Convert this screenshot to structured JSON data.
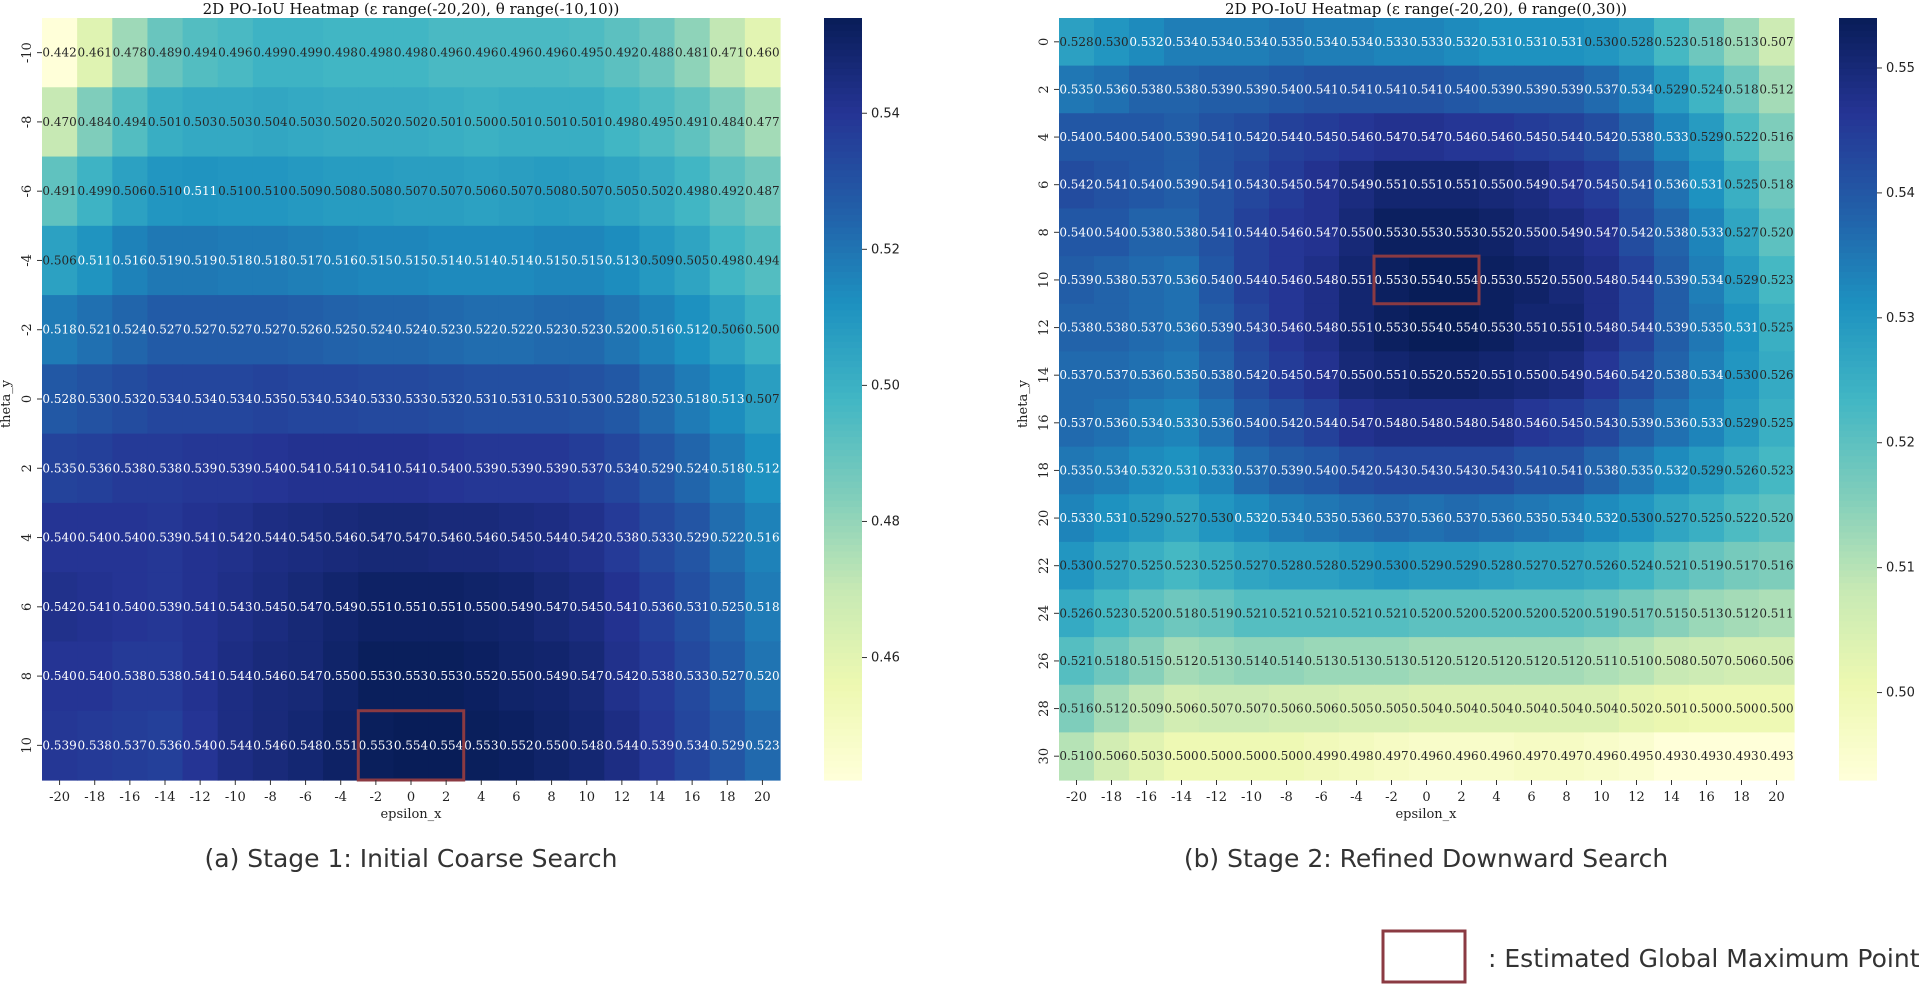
{
  "chart_data": [
    {
      "type": "heatmap",
      "title": "2D PO-IoU Heatmap (ε range(-20,20), θ range(-10,10))",
      "caption": "(a) Stage 1: Initial Coarse Search",
      "xlabel": "epsilon_x",
      "ylabel": "theta_y",
      "x_ticks": [
        "-20",
        "-18",
        "-16",
        "-14",
        "-12",
        "-10",
        "-8",
        "-6",
        "-4",
        "-2",
        "0",
        "2",
        "4",
        "6",
        "8",
        "10",
        "12",
        "14",
        "16",
        "18",
        "20"
      ],
      "y_ticks": [
        "-10",
        "-8",
        "-6",
        "-4",
        "-2",
        "0",
        "2",
        "4",
        "6",
        "8",
        "10"
      ],
      "values": [
        [
          0.442,
          0.461,
          0.478,
          0.489,
          0.494,
          0.496,
          0.499,
          0.499,
          0.498,
          0.498,
          0.498,
          0.496,
          0.496,
          0.496,
          0.496,
          0.495,
          0.492,
          0.488,
          0.481,
          0.471,
          0.46
        ],
        [
          0.47,
          0.484,
          0.494,
          0.501,
          0.503,
          0.503,
          0.504,
          0.503,
          0.502,
          0.502,
          0.502,
          0.501,
          0.5,
          0.501,
          0.501,
          0.501,
          0.498,
          0.495,
          0.491,
          0.484,
          0.477
        ],
        [
          0.491,
          0.499,
          0.506,
          0.51,
          0.511,
          0.51,
          0.51,
          0.509,
          0.508,
          0.508,
          0.507,
          0.507,
          0.506,
          0.507,
          0.508,
          0.507,
          0.505,
          0.502,
          0.498,
          0.492,
          0.487
        ],
        [
          0.506,
          0.511,
          0.516,
          0.519,
          0.519,
          0.518,
          0.518,
          0.517,
          0.516,
          0.515,
          0.515,
          0.514,
          0.514,
          0.514,
          0.515,
          0.515,
          0.513,
          0.509,
          0.505,
          0.498,
          0.494
        ],
        [
          0.518,
          0.521,
          0.524,
          0.527,
          0.527,
          0.527,
          0.527,
          0.526,
          0.525,
          0.524,
          0.524,
          0.523,
          0.522,
          0.522,
          0.523,
          0.523,
          0.52,
          0.516,
          0.512,
          0.506,
          0.5
        ],
        [
          0.528,
          0.53,
          0.532,
          0.534,
          0.534,
          0.534,
          0.535,
          0.534,
          0.534,
          0.533,
          0.533,
          0.532,
          0.531,
          0.531,
          0.531,
          0.53,
          0.528,
          0.523,
          0.518,
          0.513,
          0.507
        ],
        [
          0.535,
          0.536,
          0.538,
          0.538,
          0.539,
          0.539,
          0.54,
          0.541,
          0.541,
          0.541,
          0.541,
          0.54,
          0.539,
          0.539,
          0.539,
          0.537,
          0.534,
          0.529,
          0.524,
          0.518,
          0.512
        ],
        [
          0.54,
          0.54,
          0.54,
          0.539,
          0.541,
          0.542,
          0.544,
          0.545,
          0.546,
          0.547,
          0.547,
          0.546,
          0.546,
          0.545,
          0.544,
          0.542,
          0.538,
          0.533,
          0.529,
          0.522,
          0.516
        ],
        [
          0.542,
          0.541,
          0.54,
          0.539,
          0.541,
          0.543,
          0.545,
          0.547,
          0.549,
          0.551,
          0.551,
          0.551,
          0.55,
          0.549,
          0.547,
          0.545,
          0.541,
          0.536,
          0.531,
          0.525,
          0.518
        ],
        [
          0.54,
          0.54,
          0.538,
          0.538,
          0.541,
          0.544,
          0.546,
          0.547,
          0.55,
          0.553,
          0.553,
          0.553,
          0.552,
          0.55,
          0.549,
          0.547,
          0.542,
          0.538,
          0.533,
          0.527,
          0.52
        ],
        [
          0.539,
          0.538,
          0.537,
          0.536,
          0.54,
          0.544,
          0.546,
          0.548,
          0.551,
          0.553,
          0.554,
          0.554,
          0.553,
          0.552,
          0.55,
          0.548,
          0.544,
          0.539,
          0.534,
          0.529,
          0.523
        ]
      ],
      "vmin": 0.442,
      "vmax": 0.554,
      "colorbar_ticks": [
        "0.46",
        "0.48",
        "0.50",
        "0.52",
        "0.54"
      ],
      "highlight": {
        "col_start": 9,
        "col_end": 11,
        "row": 10
      }
    },
    {
      "type": "heatmap",
      "title": "2D PO-IoU Heatmap (ε range(-20,20), θ range(0,30))",
      "caption": "(b) Stage 2: Refined Downward Search",
      "xlabel": "epsilon_x",
      "ylabel": "theta_y",
      "x_ticks": [
        "-20",
        "-18",
        "-16",
        "-14",
        "-12",
        "-10",
        "-8",
        "-6",
        "-4",
        "-2",
        "0",
        "2",
        "4",
        "6",
        "8",
        "10",
        "12",
        "14",
        "16",
        "18",
        "20"
      ],
      "y_ticks": [
        "0",
        "2",
        "4",
        "6",
        "8",
        "10",
        "12",
        "14",
        "16",
        "18",
        "20",
        "22",
        "24",
        "26",
        "28",
        "30"
      ],
      "values": [
        [
          0.528,
          0.53,
          0.532,
          0.534,
          0.534,
          0.534,
          0.535,
          0.534,
          0.534,
          0.533,
          0.533,
          0.532,
          0.531,
          0.531,
          0.531,
          0.53,
          0.528,
          0.523,
          0.518,
          0.513,
          0.507
        ],
        [
          0.535,
          0.536,
          0.538,
          0.538,
          0.539,
          0.539,
          0.54,
          0.541,
          0.541,
          0.541,
          0.541,
          0.54,
          0.539,
          0.539,
          0.539,
          0.537,
          0.534,
          0.529,
          0.524,
          0.518,
          0.512
        ],
        [
          0.54,
          0.54,
          0.54,
          0.539,
          0.541,
          0.542,
          0.544,
          0.545,
          0.546,
          0.547,
          0.547,
          0.546,
          0.546,
          0.545,
          0.544,
          0.542,
          0.538,
          0.533,
          0.529,
          0.522,
          0.516
        ],
        [
          0.542,
          0.541,
          0.54,
          0.539,
          0.541,
          0.543,
          0.545,
          0.547,
          0.549,
          0.551,
          0.551,
          0.551,
          0.55,
          0.549,
          0.547,
          0.545,
          0.541,
          0.536,
          0.531,
          0.525,
          0.518
        ],
        [
          0.54,
          0.54,
          0.538,
          0.538,
          0.541,
          0.544,
          0.546,
          0.547,
          0.55,
          0.553,
          0.553,
          0.553,
          0.552,
          0.55,
          0.549,
          0.547,
          0.542,
          0.538,
          0.533,
          0.527,
          0.52
        ],
        [
          0.539,
          0.538,
          0.537,
          0.536,
          0.54,
          0.544,
          0.546,
          0.548,
          0.551,
          0.553,
          0.554,
          0.554,
          0.553,
          0.552,
          0.55,
          0.548,
          0.544,
          0.539,
          0.534,
          0.529,
          0.523
        ],
        [
          0.538,
          0.538,
          0.537,
          0.536,
          0.539,
          0.543,
          0.546,
          0.548,
          0.551,
          0.553,
          0.554,
          0.554,
          0.553,
          0.551,
          0.551,
          0.548,
          0.544,
          0.539,
          0.535,
          0.531,
          0.525
        ],
        [
          0.537,
          0.537,
          0.536,
          0.535,
          0.538,
          0.542,
          0.545,
          0.547,
          0.55,
          0.551,
          0.552,
          0.552,
          0.551,
          0.55,
          0.549,
          0.546,
          0.542,
          0.538,
          0.534,
          0.53,
          0.526
        ],
        [
          0.537,
          0.536,
          0.534,
          0.533,
          0.536,
          0.54,
          0.542,
          0.544,
          0.547,
          0.548,
          0.548,
          0.548,
          0.548,
          0.546,
          0.545,
          0.543,
          0.539,
          0.536,
          0.533,
          0.529,
          0.525
        ],
        [
          0.535,
          0.534,
          0.532,
          0.531,
          0.533,
          0.537,
          0.539,
          0.54,
          0.542,
          0.543,
          0.543,
          0.543,
          0.543,
          0.541,
          0.541,
          0.538,
          0.535,
          0.532,
          0.529,
          0.526,
          0.523
        ],
        [
          0.533,
          0.531,
          0.529,
          0.527,
          0.53,
          0.532,
          0.534,
          0.535,
          0.536,
          0.537,
          0.536,
          0.537,
          0.536,
          0.535,
          0.534,
          0.532,
          0.53,
          0.527,
          0.525,
          0.522,
          0.52
        ],
        [
          0.53,
          0.527,
          0.525,
          0.523,
          0.525,
          0.527,
          0.528,
          0.528,
          0.529,
          0.53,
          0.529,
          0.529,
          0.528,
          0.527,
          0.527,
          0.526,
          0.524,
          0.521,
          0.519,
          0.517,
          0.516
        ],
        [
          0.526,
          0.523,
          0.52,
          0.518,
          0.519,
          0.521,
          0.521,
          0.521,
          0.521,
          0.521,
          0.52,
          0.52,
          0.52,
          0.52,
          0.52,
          0.519,
          0.517,
          0.515,
          0.513,
          0.512,
          0.511
        ],
        [
          0.521,
          0.518,
          0.515,
          0.512,
          0.513,
          0.514,
          0.514,
          0.513,
          0.513,
          0.513,
          0.512,
          0.512,
          0.512,
          0.512,
          0.512,
          0.511,
          0.51,
          0.508,
          0.507,
          0.506,
          0.506
        ],
        [
          0.516,
          0.512,
          0.509,
          0.506,
          0.507,
          0.507,
          0.506,
          0.506,
          0.505,
          0.505,
          0.504,
          0.504,
          0.504,
          0.504,
          0.504,
          0.504,
          0.502,
          0.501,
          0.5,
          0.5,
          0.5
        ],
        [
          0.51,
          0.506,
          0.503,
          0.5,
          0.5,
          0.5,
          0.5,
          0.499,
          0.498,
          0.497,
          0.496,
          0.496,
          0.496,
          0.497,
          0.497,
          0.496,
          0.495,
          0.493,
          0.493,
          0.493,
          0.493
        ]
      ],
      "vmin": 0.493,
      "vmax": 0.554,
      "colorbar_ticks": [
        "0.50",
        "0.51",
        "0.52",
        "0.53",
        "0.54",
        "0.55"
      ],
      "highlight": {
        "col_start": 9,
        "col_end": 11,
        "row": 5
      }
    }
  ],
  "legend": {
    "label": ": Estimated Global Maximum Point",
    "box_color": "#8b3a42"
  },
  "colors": {
    "highlight_box": "#8b3a42",
    "colormap": "YlGnBu"
  }
}
